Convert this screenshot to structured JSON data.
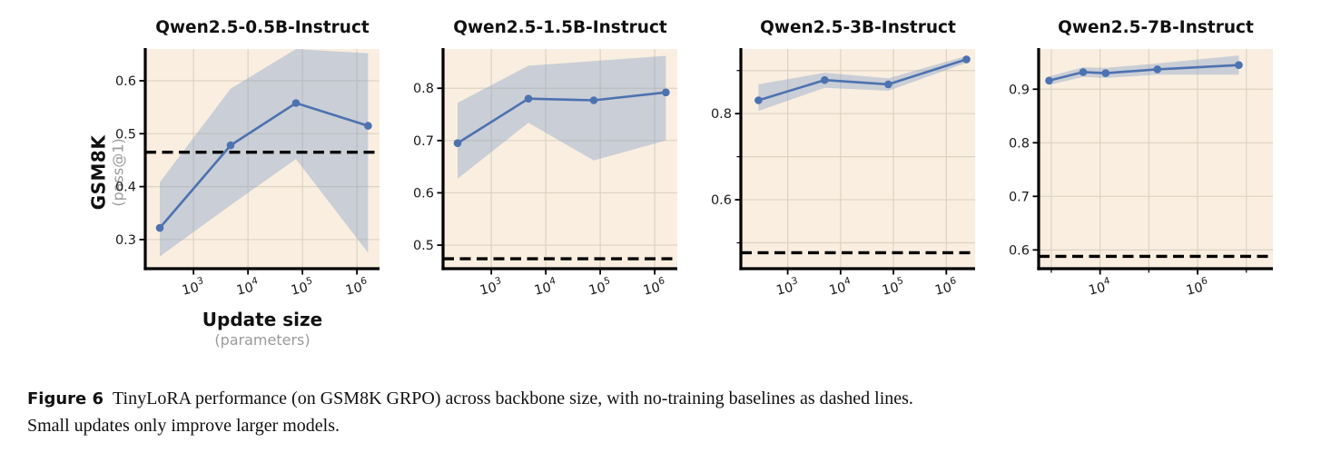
{
  "figure": {
    "caption_label": "Figure 6",
    "caption_line1": "TinyLoRA performance (on GSM8K GRPO) across backbone size, with no-training baselines as dashed lines.",
    "caption_line2": "Small updates only improve larger models."
  },
  "axes": {
    "ylabel": "GSM8K",
    "ylabel_sub": "(pass@1)",
    "xlabel": "Update size",
    "xlabel_sub": "(parameters)"
  },
  "style": {
    "plot_bg": "#f9eee0",
    "grid": "#ddd3c2",
    "line": "#4d72b0",
    "band": "#7f9cc4",
    "band_opacity": 0.38,
    "baseline": "#000000"
  },
  "chart_data": [
    {
      "type": "line",
      "title": "Qwen2.5-0.5B-Instruct",
      "xscale": "log",
      "xlim": [
        130,
        2600000
      ],
      "ylim": [
        0.245,
        0.66
      ],
      "xticks_labeled": [
        1000,
        10000,
        100000,
        1000000
      ],
      "yticks": [
        0.3,
        0.4,
        0.5,
        0.6
      ],
      "yticks_labeled": [
        0.3,
        0.4,
        0.5,
        0.6
      ],
      "x": [
        240,
        4800,
        76000,
        1600000
      ],
      "y": [
        0.322,
        0.478,
        0.558,
        0.515
      ],
      "band_lower": [
        0.268,
        0.365,
        0.452,
        0.275
      ],
      "band_upper": [
        0.408,
        0.585,
        0.66,
        0.652
      ],
      "baseline": 0.465
    },
    {
      "type": "line",
      "title": "Qwen2.5-1.5B-Instruct",
      "xscale": "log",
      "xlim": [
        130,
        2600000
      ],
      "ylim": [
        0.455,
        0.875
      ],
      "xticks_labeled": [
        1000,
        10000,
        100000,
        1000000
      ],
      "yticks": [
        0.5,
        0.6,
        0.7,
        0.8
      ],
      "yticks_labeled": [
        0.5,
        0.6,
        0.7,
        0.8
      ],
      "x": [
        240,
        4800,
        76000,
        1600000
      ],
      "y": [
        0.695,
        0.78,
        0.777,
        0.792
      ],
      "band_lower": [
        0.627,
        0.734,
        0.662,
        0.7
      ],
      "band_upper": [
        0.772,
        0.843,
        0.852,
        0.862
      ],
      "baseline": 0.474
    },
    {
      "type": "line",
      "title": "Qwen2.5-3B-Instruct",
      "xscale": "log",
      "xlim": [
        130,
        3500000
      ],
      "ylim": [
        0.44,
        0.95
      ],
      "xticks_labeled": [
        1000,
        10000,
        100000,
        1000000
      ],
      "yticks": [
        0.5,
        0.6,
        0.7,
        0.8,
        0.9
      ],
      "yticks_labeled": [
        0.6,
        0.8
      ],
      "x": [
        280,
        5000,
        80000,
        2400000
      ],
      "y": [
        0.831,
        0.878,
        0.868,
        0.926
      ],
      "band_lower": [
        0.806,
        0.86,
        0.853,
        0.918
      ],
      "band_upper": [
        0.868,
        0.895,
        0.882,
        0.934
      ],
      "baseline": 0.477
    },
    {
      "type": "line",
      "title": "Qwen2.5-7B-Instruct",
      "xscale": "log",
      "xlim": [
        550,
        35000000
      ],
      "ylim": [
        0.565,
        0.975
      ],
      "xticks_labeled": [
        10000,
        1000000
      ],
      "yticks": [
        0.6,
        0.7,
        0.8,
        0.9
      ],
      "yticks_labeled": [
        0.6,
        0.7,
        0.8,
        0.9
      ],
      "x": [
        900,
        4500,
        13000,
        150000,
        7000000
      ],
      "y": [
        0.916,
        0.932,
        0.93,
        0.937,
        0.945
      ],
      "band_lower": [
        0.908,
        0.923,
        0.921,
        0.927,
        0.927
      ],
      "band_upper": [
        0.924,
        0.941,
        0.94,
        0.948,
        0.963
      ],
      "baseline": 0.588
    }
  ]
}
